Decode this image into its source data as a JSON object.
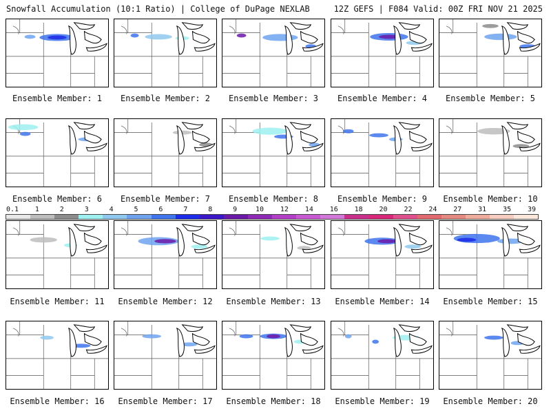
{
  "header": {
    "left_title": "Snowfall Accumulation (10:1 Ratio) | College of DuPage NEXLAB",
    "right_title": "12Z GEFS | F084 Valid: 00Z FRI NOV 21 2025"
  },
  "colorbar": {
    "labels": [
      "0.1",
      "1",
      "2",
      "3",
      "4",
      "5",
      "6",
      "7",
      "8",
      "9",
      "10",
      "12",
      "14",
      "16",
      "18",
      "20",
      "22",
      "24",
      "27",
      "31",
      "35",
      "39"
    ],
    "colors": [
      "#e8e8e8",
      "#bdbdbd",
      "#8c8c8c",
      "#9ff0f0",
      "#8fc9ef",
      "#6fa3ee",
      "#3f74ec",
      "#1c2ce8",
      "#3a18c8",
      "#6b1aa8",
      "#8e2ab6",
      "#b33fc6",
      "#c85ad4",
      "#d278d8",
      "#c8308c",
      "#d8287a",
      "#e0508c",
      "#e06a70",
      "#e48a80",
      "#efac9c",
      "#f6cdbf",
      "#fbe7dc"
    ]
  },
  "members": [
    {
      "label": "Ensemble Member: 1",
      "blobs": [
        [
          35,
          26,
          8,
          "#6fa3ee"
        ],
        [
          75,
          27,
          26,
          "#3f74ec"
        ],
        [
          75,
          27,
          14,
          "#1c2ce8"
        ]
      ]
    },
    {
      "label": "Ensemble Member: 2",
      "blobs": [
        [
          30,
          24,
          6,
          "#3f74ec"
        ],
        [
          65,
          26,
          20,
          "#8fc9ef"
        ],
        [
          100,
          28,
          10,
          "#9ff0f0"
        ]
      ]
    },
    {
      "label": "Ensemble Member: 3",
      "blobs": [
        [
          28,
          24,
          7,
          "#6b1aa8"
        ],
        [
          85,
          27,
          26,
          "#6fa3ee"
        ],
        [
          130,
          40,
          8,
          "#3f74ec"
        ]
      ]
    },
    {
      "label": "Ensemble Member: 4",
      "blobs": [
        [
          85,
          26,
          28,
          "#3f74ec"
        ],
        [
          85,
          26,
          15,
          "#6b1aa8"
        ],
        [
          122,
          35,
          12,
          "#8fc9ef"
        ]
      ]
    },
    {
      "label": "Ensemble Member: 5",
      "blobs": [
        [
          90,
          26,
          24,
          "#6fa3ee"
        ],
        [
          130,
          40,
          12,
          "#3f74ec"
        ],
        [
          75,
          10,
          12,
          "#8c8c8c"
        ]
      ]
    },
    {
      "label": "Ensemble Member: 6",
      "blobs": [
        [
          25,
          12,
          22,
          "#9ff0f0"
        ],
        [
          28,
          22,
          8,
          "#3f74ec"
        ],
        [
          120,
          30,
          14,
          "#6fa3ee"
        ]
      ]
    },
    {
      "label": "Ensemble Member: 7",
      "blobs": [
        [
          100,
          20,
          14,
          "#bdbdbd"
        ],
        [
          135,
          38,
          10,
          "#8c8c8c"
        ]
      ]
    },
    {
      "label": "Ensemble Member: 8",
      "blobs": [
        [
          70,
          18,
          26,
          "#9ff0f0"
        ],
        [
          90,
          26,
          14,
          "#3f74ec"
        ],
        [
          135,
          38,
          8,
          "#6fa3ee"
        ]
      ]
    },
    {
      "label": "Ensemble Member: 9",
      "blobs": [
        [
          25,
          18,
          8,
          "#3f74ec"
        ],
        [
          70,
          24,
          14,
          "#3f74ec"
        ],
        [
          95,
          30,
          10,
          "#6fa3ee"
        ]
      ]
    },
    {
      "label": "Ensemble Member: 10",
      "blobs": [
        [
          80,
          18,
          24,
          "#bdbdbd"
        ],
        [
          120,
          40,
          12,
          "#8c8c8c"
        ]
      ]
    },
    {
      "label": "Ensemble Member: 11",
      "blobs": [
        [
          55,
          28,
          20,
          "#bdbdbd"
        ],
        [
          95,
          36,
          10,
          "#9ff0f0"
        ]
      ]
    },
    {
      "label": "Ensemble Member: 12",
      "blobs": [
        [
          65,
          30,
          30,
          "#6fa3ee"
        ],
        [
          75,
          30,
          16,
          "#6b1aa8"
        ],
        [
          125,
          38,
          12,
          "#9ff0f0"
        ]
      ]
    },
    {
      "label": "Ensemble Member: 13",
      "blobs": [
        [
          70,
          26,
          14,
          "#9ff0f0"
        ],
        [
          120,
          40,
          10,
          "#bdbdbd"
        ]
      ]
    },
    {
      "label": "Ensemble Member: 14",
      "blobs": [
        [
          75,
          30,
          26,
          "#3f74ec"
        ],
        [
          82,
          30,
          14,
          "#6b1aa8"
        ],
        [
          120,
          38,
          12,
          "#8fc9ef"
        ]
      ]
    },
    {
      "label": "Ensemble Member: 15",
      "blobs": [
        [
          55,
          26,
          34,
          "#3f74ec"
        ],
        [
          105,
          30,
          20,
          "#6fa3ee"
        ],
        [
          40,
          28,
          14,
          "#1c2ce8"
        ]
      ]
    },
    {
      "label": "Ensemble Member: 16",
      "blobs": [
        [
          60,
          24,
          10,
          "#8fc9ef"
        ],
        [
          110,
          36,
          14,
          "#3f74ec"
        ]
      ]
    },
    {
      "label": "Ensemble Member: 17",
      "blobs": [
        [
          55,
          22,
          14,
          "#6fa3ee"
        ],
        [
          110,
          34,
          12,
          "#6fa3ee"
        ]
      ]
    },
    {
      "label": "Ensemble Member: 18",
      "blobs": [
        [
          35,
          22,
          10,
          "#3f74ec"
        ],
        [
          75,
          22,
          20,
          "#3f74ec"
        ],
        [
          75,
          22,
          10,
          "#6b1aa8"
        ],
        [
          115,
          30,
          10,
          "#9ff0f0"
        ]
      ]
    },
    {
      "label": "Ensemble Member: 19",
      "blobs": [
        [
          25,
          22,
          5,
          "#6fa3ee"
        ],
        [
          65,
          30,
          5,
          "#3f74ec"
        ],
        [
          110,
          24,
          20,
          "#9ff0f0"
        ]
      ]
    },
    {
      "label": "Ensemble Member: 20",
      "blobs": [
        [
          80,
          24,
          14,
          "#3f74ec"
        ],
        [
          115,
          32,
          10,
          "#6fa3ee"
        ]
      ]
    }
  ]
}
